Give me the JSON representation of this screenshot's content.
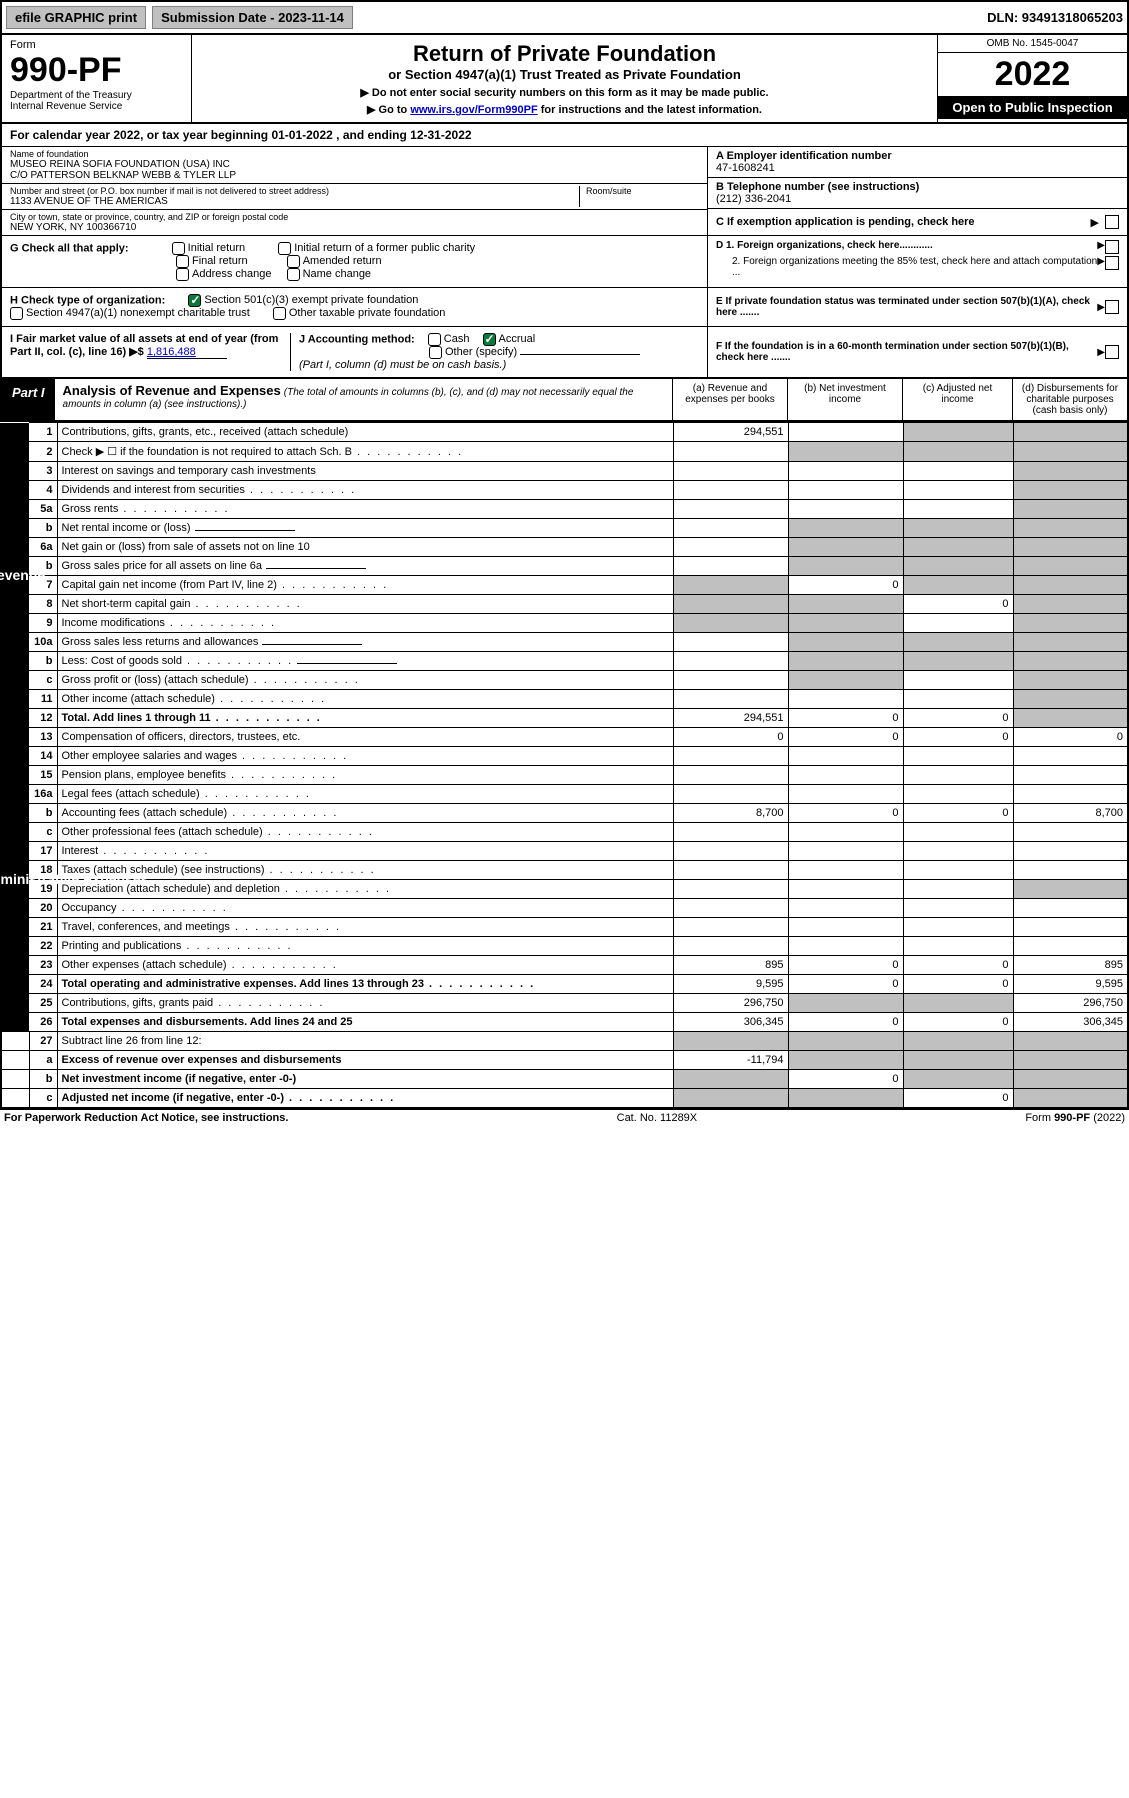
{
  "topbar": {
    "efile": "efile GRAPHIC print",
    "subdate_lbl": "Submission Date - 2023-11-14",
    "dln": "DLN: 93491318065203"
  },
  "header": {
    "form": "Form",
    "num": "990-PF",
    "dept": "Department of the Treasury",
    "irs": "Internal Revenue Service",
    "title": "Return of Private Foundation",
    "sub1": "or Section 4947(a)(1) Trust Treated as Private Foundation",
    "sub2a": "▶ Do not enter social security numbers on this form as it may be made public.",
    "sub2b": "▶ Go to ",
    "sub2link": "www.irs.gov/Form990PF",
    "sub2c": " for instructions and the latest information.",
    "omb": "OMB No. 1545-0047",
    "year": "2022",
    "open": "Open to Public Inspection"
  },
  "cal": "For calendar year 2022, or tax year beginning 01-01-2022                          , and ending 12-31-2022",
  "info": {
    "name_lbl": "Name of foundation",
    "name1": "MUSEO REINA SOFIA FOUNDATION (USA) INC",
    "name2": "C/O PATTERSON BELKNAP WEBB & TYLER LLP",
    "addr_lbl": "Number and street (or P.O. box number if mail is not delivered to street address)",
    "addr": "1133 AVENUE OF THE AMERICAS",
    "room_lbl": "Room/suite",
    "city_lbl": "City or town, state or province, country, and ZIP or foreign postal code",
    "city": "NEW YORK, NY  100366710",
    "a_lbl": "A Employer identification number",
    "a_val": "47-1608241",
    "b_lbl": "B Telephone number (see instructions)",
    "b_val": "(212) 336-2041",
    "c_lbl": "C If exemption application is pending, check here",
    "d1": "D 1. Foreign organizations, check here............",
    "d2": "2. Foreign organizations meeting the 85% test, check here and attach computation ...",
    "e": "E  If private foundation status was terminated under section 507(b)(1)(A), check here .......",
    "f": "F  If the foundation is in a 60-month termination under section 507(b)(1)(B), check here .......",
    "g": "G Check all that apply:",
    "g_items": [
      "Initial return",
      "Initial return of a former public charity",
      "Final return",
      "Amended return",
      "Address change",
      "Name change"
    ],
    "h": "H Check type of organization:",
    "h1": "Section 501(c)(3) exempt private foundation",
    "h2": "Section 4947(a)(1) nonexempt charitable trust",
    "h3": "Other taxable private foundation",
    "i": "I Fair market value of all assets at end of year (from Part II, col. (c), line 16) ▶$",
    "i_val": "1,816,488",
    "j": "J Accounting method:",
    "j1": "Cash",
    "j2": "Accrual",
    "j3": "Other (specify)",
    "j_note": "(Part I, column (d) must be on cash basis.)"
  },
  "part1": {
    "lbl": "Part I",
    "title": "Analysis of Revenue and Expenses",
    "note": "(The total of amounts in columns (b), (c), and (d) may not necessarily equal the amounts in column (a) (see instructions).)",
    "ca": "(a)  Revenue and expenses per books",
    "cb": "(b)  Net investment income",
    "cc": "(c)  Adjusted net income",
    "cd": "(d)  Disbursements for charitable purposes (cash basis only)"
  },
  "side": {
    "rev": "Revenue",
    "exp": "Operating and Administrative Expenses"
  },
  "rows": [
    {
      "n": "1",
      "d": "Contributions, gifts, grants, etc., received (attach schedule)",
      "a": "294,551",
      "bgray": false,
      "cgray": true,
      "dgray": true
    },
    {
      "n": "2",
      "d": "Check ▶ ☐ if the foundation is not required to attach Sch. B",
      "dots": true,
      "bgray": true,
      "cgray": true,
      "dgray": true
    },
    {
      "n": "3",
      "d": "Interest on savings and temporary cash investments",
      "dgray": true
    },
    {
      "n": "4",
      "d": "Dividends and interest from securities",
      "dots": true,
      "dgray": true
    },
    {
      "n": "5a",
      "d": "Gross rents",
      "dots": true,
      "dgray": true
    },
    {
      "n": "b",
      "d": "Net rental income or (loss)",
      "blank": true,
      "bgray": true,
      "cgray": true,
      "dgray": true
    },
    {
      "n": "6a",
      "d": "Net gain or (loss) from sale of assets not on line 10",
      "bgray": true,
      "cgray": true,
      "dgray": true
    },
    {
      "n": "b",
      "d": "Gross sales price for all assets on line 6a",
      "blank": true,
      "bgray": true,
      "cgray": true,
      "dgray": true
    },
    {
      "n": "7",
      "d": "Capital gain net income (from Part IV, line 2)",
      "dots": true,
      "agray": true,
      "b": "0",
      "cgray": true,
      "dgray": true
    },
    {
      "n": "8",
      "d": "Net short-term capital gain",
      "dots": true,
      "agray": true,
      "bgray": true,
      "c": "0",
      "dgray": true
    },
    {
      "n": "9",
      "d": "Income modifications",
      "dots": true,
      "agray": true,
      "bgray": true,
      "dgray": true
    },
    {
      "n": "10a",
      "d": "Gross sales less returns and allowances",
      "blank": true,
      "bgray": true,
      "cgray": true,
      "dgray": true
    },
    {
      "n": "b",
      "d": "Less: Cost of goods sold",
      "dots": true,
      "blank": true,
      "bgray": true,
      "cgray": true,
      "dgray": true
    },
    {
      "n": "c",
      "d": "Gross profit or (loss) (attach schedule)",
      "dots": true,
      "bgray": true,
      "dgray": true
    },
    {
      "n": "11",
      "d": "Other income (attach schedule)",
      "dots": true,
      "dgray": true
    },
    {
      "n": "12",
      "d": "Total. Add lines 1 through 11",
      "dots": true,
      "bold": true,
      "a": "294,551",
      "b": "0",
      "c": "0",
      "dgray": true
    }
  ],
  "exp_rows": [
    {
      "n": "13",
      "d": "Compensation of officers, directors, trustees, etc.",
      "a": "0",
      "b": "0",
      "c": "0",
      "dd": "0"
    },
    {
      "n": "14",
      "d": "Other employee salaries and wages",
      "dots": true
    },
    {
      "n": "15",
      "d": "Pension plans, employee benefits",
      "dots": true
    },
    {
      "n": "16a",
      "d": "Legal fees (attach schedule)",
      "dots": true
    },
    {
      "n": "b",
      "d": "Accounting fees (attach schedule)",
      "dots": true,
      "a": "8,700",
      "b": "0",
      "c": "0",
      "dd": "8,700"
    },
    {
      "n": "c",
      "d": "Other professional fees (attach schedule)",
      "dots": true
    },
    {
      "n": "17",
      "d": "Interest",
      "dots": true
    },
    {
      "n": "18",
      "d": "Taxes (attach schedule) (see instructions)",
      "dots": true
    },
    {
      "n": "19",
      "d": "Depreciation (attach schedule) and depletion",
      "dots": true,
      "dgray": true
    },
    {
      "n": "20",
      "d": "Occupancy",
      "dots": true
    },
    {
      "n": "21",
      "d": "Travel, conferences, and meetings",
      "dots": true
    },
    {
      "n": "22",
      "d": "Printing and publications",
      "dots": true
    },
    {
      "n": "23",
      "d": "Other expenses (attach schedule)",
      "dots": true,
      "a": "895",
      "b": "0",
      "c": "0",
      "dd": "895"
    },
    {
      "n": "24",
      "d": "Total operating and administrative expenses. Add lines 13 through 23",
      "dots": true,
      "bold": true,
      "a": "9,595",
      "b": "0",
      "c": "0",
      "dd": "9,595"
    },
    {
      "n": "25",
      "d": "Contributions, gifts, grants paid",
      "dots": true,
      "a": "296,750",
      "bgray": true,
      "cgray": true,
      "dd": "296,750"
    },
    {
      "n": "26",
      "d": "Total expenses and disbursements. Add lines 24 and 25",
      "bold": true,
      "a": "306,345",
      "b": "0",
      "c": "0",
      "dd": "306,345"
    }
  ],
  "final_rows": [
    {
      "n": "27",
      "d": "Subtract line 26 from line 12:",
      "agray": true,
      "bgray": true,
      "cgray": true,
      "dgray": true
    },
    {
      "n": "a",
      "d": "Excess of revenue over expenses and disbursements",
      "bold": true,
      "a": "-11,794",
      "bgray": true,
      "cgray": true,
      "dgray": true
    },
    {
      "n": "b",
      "d": "Net investment income (if negative, enter -0-)",
      "bold": true,
      "agray": true,
      "b": "0",
      "cgray": true,
      "dgray": true
    },
    {
      "n": "c",
      "d": "Adjusted net income (if negative, enter -0-)",
      "dots": true,
      "bold": true,
      "agray": true,
      "bgray": true,
      "c": "0",
      "dgray": true
    }
  ],
  "footer": {
    "left": "For Paperwork Reduction Act Notice, see instructions.",
    "mid": "Cat. No. 11289X",
    "right": "Form 990-PF (2022)"
  }
}
